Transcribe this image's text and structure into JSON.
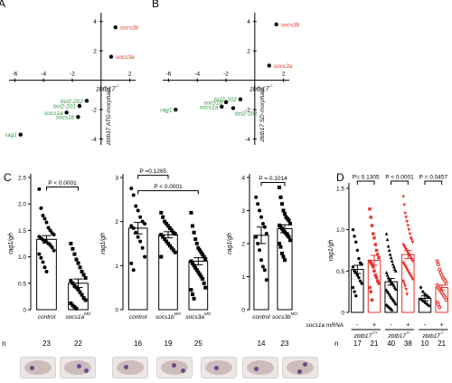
{
  "panels": {
    "A": {
      "letter": "A",
      "xlabel": "zbtb17",
      "xlabel_sup": "-/-",
      "ylabel": "zbtb17 ATG-morphant",
      "xticks": [
        -6,
        -4,
        -2,
        2
      ],
      "yticks": [
        4,
        2,
        -2,
        -4
      ],
      "points": [
        {
          "label": "socs3b",
          "x": 1.0,
          "y": 3.6,
          "color": "#e03a2f"
        },
        {
          "label": "socs3a",
          "x": 0.7,
          "y": 1.6,
          "color": "#e03a2f"
        },
        {
          "label": "bcl2-202",
          "x": -1.0,
          "y": -1.4,
          "color": "#2e9a3c"
        },
        {
          "label": "bcl2-201",
          "x": -1.5,
          "y": -1.75,
          "color": "#2e9a3c"
        },
        {
          "label": "socs1a",
          "x": -2.4,
          "y": -2.2,
          "color": "#2e9a3c"
        },
        {
          "label": "socs1b",
          "x": -1.6,
          "y": -2.5,
          "color": "#2e9a3c"
        },
        {
          "label": "rag1",
          "x": -5.6,
          "y": -3.7,
          "color": "#2e9a3c"
        }
      ]
    },
    "B": {
      "letter": "B",
      "xlabel": "zbtb17",
      "xlabel_sup": "-/-",
      "ylabel": "zbtb17 SD-morphant",
      "xticks": [
        -6,
        -4,
        -2,
        2
      ],
      "yticks": [
        4,
        2,
        -2,
        -4
      ],
      "points": [
        {
          "label": "socs3b",
          "x": 1.5,
          "y": 3.8,
          "color": "#e03a2f"
        },
        {
          "label": "socs3a",
          "x": 1.0,
          "y": 1.0,
          "color": "#e03a2f"
        },
        {
          "label": "bcl2-202",
          "x": -1.0,
          "y": -1.3,
          "color": "#2e9a3c"
        },
        {
          "label": "socs1b",
          "x": -2.0,
          "y": -1.5,
          "color": "#2e9a3c"
        },
        {
          "label": "socs1a",
          "x": -2.3,
          "y": -1.8,
          "color": "#2e9a3c"
        },
        {
          "label": "bcl2-201",
          "x": -1.5,
          "y": -1.9,
          "color": "#2e9a3c"
        },
        {
          "label": "rag1",
          "x": -5.5,
          "y": -2.0,
          "color": "#2e9a3c"
        }
      ]
    },
    "C": {
      "letter": "C",
      "ylabel": "rag1/gh",
      "n_label": "n",
      "sub": [
        {
          "ylim": [
            0,
            2.5
          ],
          "yticks": [
            "0",
            "0.5",
            "1.0",
            "1.5",
            "2.0",
            "2.5"
          ],
          "tick_values": [
            0,
            0.5,
            1.0,
            1.5,
            2.0,
            2.5
          ],
          "groups": [
            {
              "name": "control",
              "sup": "",
              "mean": 1.33,
              "sem": 0.07,
              "n": "23",
              "marker": "circle",
              "points": [
                2.28,
                1.92,
                1.78,
                1.72,
                1.65,
                1.55,
                1.5,
                1.45,
                1.42,
                1.38,
                1.35,
                1.32,
                1.3,
                1.28,
                1.25,
                1.22,
                1.18,
                1.12,
                1.05,
                0.98,
                0.9,
                0.8,
                0.72
              ]
            },
            {
              "name": "socs1a",
              "sup": "MO",
              "mean": 0.5,
              "sem": 0.08,
              "n": "22",
              "marker": "square",
              "points": [
                1.25,
                1.15,
                1.05,
                0.95,
                0.88,
                0.8,
                0.72,
                0.66,
                0.6,
                0.55,
                0.5,
                0.45,
                0.42,
                0.38,
                0.33,
                0.28,
                0.22,
                0.18,
                0.12,
                0.08,
                0.05,
                0.02
              ]
            }
          ],
          "brackets": [
            {
              "from": 0,
              "to": 1,
              "y": 2.32,
              "label": "P < 0.0001"
            }
          ]
        },
        {
          "ylim": [
            0,
            3
          ],
          "yticks": [
            "0",
            "1",
            "2",
            "3"
          ],
          "tick_values": [
            0,
            1,
            2,
            3
          ],
          "groups": [
            {
              "name": "control",
              "sup": "",
              "mean": 1.85,
              "sem": 0.13,
              "n": "16",
              "marker": "circle",
              "points": [
                2.75,
                2.6,
                2.35,
                2.25,
                2.1,
                2.0,
                1.95,
                1.9,
                1.85,
                1.75,
                1.65,
                1.55,
                1.4,
                1.2,
                1.05,
                0.9
              ]
            },
            {
              "name": "socs1b",
              "sup": "MO",
              "mean": 1.7,
              "sem": 0.07,
              "n": "19",
              "marker": "square",
              "points": [
                2.2,
                2.1,
                2.0,
                1.95,
                1.9,
                1.85,
                1.8,
                1.75,
                1.72,
                1.7,
                1.65,
                1.6,
                1.55,
                1.5,
                1.45,
                1.4,
                1.35,
                1.3,
                1.2
              ]
            },
            {
              "name": "socs3a",
              "sup": "MO",
              "mean": 1.1,
              "sem": 0.08,
              "n": "25",
              "marker": "square",
              "points": [
                2.2,
                1.9,
                1.75,
                1.6,
                1.5,
                1.4,
                1.35,
                1.3,
                1.25,
                1.2,
                1.15,
                1.1,
                1.05,
                1.0,
                0.95,
                0.9,
                0.85,
                0.8,
                0.75,
                0.7,
                0.6,
                0.5,
                0.45,
                0.35,
                0.25
              ]
            }
          ],
          "brackets": [
            {
              "from": 0,
              "to": 1,
              "y": 3.05,
              "label": "P =0.1265"
            },
            {
              "from": 0,
              "to": 2,
              "y": 2.7,
              "label": "P < 0.0001"
            }
          ]
        },
        {
          "ylim": [
            0,
            4
          ],
          "yticks": [
            "0",
            "1",
            "2",
            "3",
            "4"
          ],
          "tick_values": [
            0,
            1,
            2,
            3,
            4
          ],
          "groups": [
            {
              "name": "control",
              "sup": "",
              "mean": 2.25,
              "sem": 0.25,
              "n": "14",
              "marker": "circle",
              "points": [
                3.4,
                3.2,
                3.0,
                2.8,
                2.6,
                2.5,
                2.3,
                2.2,
                2.0,
                1.8,
                1.5,
                1.3,
                1.2,
                0.9
              ]
            },
            {
              "name": "socs3b",
              "sup": "MO",
              "mean": 2.45,
              "sem": 0.12,
              "n": "23",
              "marker": "square",
              "points": [
                3.7,
                3.4,
                3.2,
                3.0,
                2.9,
                2.8,
                2.75,
                2.7,
                2.6,
                2.55,
                2.5,
                2.45,
                2.4,
                2.35,
                2.3,
                2.25,
                2.2,
                2.1,
                2.0,
                1.9,
                1.7,
                1.6,
                1.5
              ]
            }
          ],
          "brackets": [
            {
              "from": 0,
              "to": 1,
              "y": 3.85,
              "label": "P = 0.1014"
            }
          ]
        }
      ]
    },
    "D": {
      "letter": "D",
      "ylabel": "rag1/gh",
      "yticks": [
        "0",
        "0.5",
        "1.0",
        "1.5"
      ],
      "tick_values": [
        0,
        0.5,
        1.0,
        1.5
      ],
      "ylim": [
        0,
        1.5
      ],
      "n_label": "n",
      "mrna_label": "socs1a mRNA",
      "genotypes": [
        {
          "name": "zbtb17",
          "sup": "+/+"
        },
        {
          "name": "zbtb17",
          "sup": "+/-"
        },
        {
          "name": "zbtb17",
          "sup": "-/-"
        }
      ],
      "groups": [
        {
          "mrna": "-",
          "mean": 0.52,
          "sem": 0.05,
          "n": "17",
          "color": "#000000",
          "marker": "circle",
          "points": [
            1.0,
            0.92,
            0.85,
            0.75,
            0.65,
            0.6,
            0.58,
            0.55,
            0.5,
            0.48,
            0.45,
            0.42,
            0.38,
            0.35,
            0.3,
            0.25,
            0.2
          ]
        },
        {
          "mrna": "+",
          "mean": 0.63,
          "sem": 0.06,
          "n": "21",
          "color": "#e8302a",
          "marker": "square",
          "points": [
            1.25,
            1.15,
            1.05,
            0.95,
            0.9,
            0.82,
            0.75,
            0.7,
            0.66,
            0.62,
            0.6,
            0.58,
            0.55,
            0.5,
            0.45,
            0.42,
            0.38,
            0.35,
            0.3,
            0.25,
            0.15
          ]
        },
        {
          "mrna": "-",
          "mean": 0.37,
          "sem": 0.04,
          "n": "40",
          "color": "#000000",
          "marker": "triangle",
          "points": [
            0.95,
            0.88,
            0.8,
            0.75,
            0.7,
            0.66,
            0.62,
            0.58,
            0.55,
            0.52,
            0.5,
            0.48,
            0.45,
            0.42,
            0.4,
            0.38,
            0.36,
            0.35,
            0.34,
            0.32,
            0.3,
            0.28,
            0.27,
            0.25,
            0.24,
            0.22,
            0.2,
            0.18,
            0.17,
            0.15,
            0.14,
            0.12,
            0.1,
            0.09,
            0.08,
            0.07,
            0.06,
            0.05,
            0.04,
            0.03
          ]
        },
        {
          "mrna": "+",
          "mean": 0.7,
          "sem": 0.05,
          "n": "38",
          "color": "#e8302a",
          "marker": "invtriangle",
          "points": [
            1.4,
            1.3,
            1.2,
            1.15,
            1.1,
            1.05,
            1.0,
            0.95,
            0.9,
            0.88,
            0.85,
            0.82,
            0.8,
            0.78,
            0.76,
            0.74,
            0.72,
            0.7,
            0.68,
            0.66,
            0.64,
            0.62,
            0.6,
            0.58,
            0.56,
            0.54,
            0.52,
            0.5,
            0.48,
            0.46,
            0.44,
            0.42,
            0.4,
            0.38,
            0.35,
            0.32,
            0.28,
            0.22
          ]
        },
        {
          "mrna": "-",
          "mean": 0.17,
          "sem": 0.03,
          "n": "10",
          "color": "#000000",
          "marker": "diamond",
          "points": [
            0.3,
            0.25,
            0.22,
            0.2,
            0.18,
            0.16,
            0.14,
            0.12,
            0.1,
            0.08
          ]
        },
        {
          "mrna": "+",
          "mean": 0.3,
          "sem": 0.03,
          "n": "21",
          "color": "#e8302a",
          "marker": "circle-open",
          "points": [
            0.62,
            0.58,
            0.52,
            0.48,
            0.45,
            0.42,
            0.4,
            0.38,
            0.35,
            0.33,
            0.3,
            0.28,
            0.26,
            0.24,
            0.22,
            0.2,
            0.18,
            0.15,
            0.12,
            0.1,
            0.06
          ]
        }
      ],
      "brackets": [
        {
          "from": 0,
          "to": 1,
          "label": "P= 0.1305"
        },
        {
          "from": 2,
          "to": 3,
          "label": "P < 0.0001"
        },
        {
          "from": 4,
          "to": 5,
          "label": "P = 0.0457"
        }
      ]
    }
  },
  "chart_data": [
    {
      "type": "scatter",
      "panel": "A",
      "xlabel": "zbtb17-/-",
      "ylabel": "zbtb17 ATG-morphant",
      "series": [
        {
          "labels": [
            "socs3b",
            "socs3a",
            "bcl2-202",
            "bcl2-201",
            "socs1a",
            "socs1b",
            "rag1"
          ],
          "x": [
            1.0,
            0.7,
            -1.0,
            -1.5,
            -2.4,
            -1.6,
            -5.6
          ],
          "y": [
            3.6,
            1.6,
            -1.4,
            -1.75,
            -2.2,
            -2.5,
            -3.7
          ]
        }
      ]
    },
    {
      "type": "scatter",
      "panel": "B",
      "xlabel": "zbtb17-/-",
      "ylabel": "zbtb17 SD-morphant",
      "series": [
        {
          "labels": [
            "socs3b",
            "socs3a",
            "bcl2-202",
            "socs1b",
            "socs1a",
            "bcl2-201",
            "rag1"
          ],
          "x": [
            1.5,
            1.0,
            -1.0,
            -2.0,
            -2.3,
            -1.5,
            -5.5
          ],
          "y": [
            3.8,
            1.0,
            -1.3,
            -1.5,
            -1.8,
            -1.9,
            -2.0
          ]
        }
      ]
    },
    {
      "type": "bar",
      "panel": "C",
      "ylabel": "rag1/gh",
      "categories": [
        "control",
        "socs1a MO",
        "control",
        "socs1b MO",
        "socs3a MO",
        "control",
        "socs3b MO"
      ],
      "values": [
        1.33,
        0.5,
        1.85,
        1.7,
        1.1,
        2.25,
        2.45
      ],
      "n": [
        23,
        22,
        16,
        19,
        25,
        14,
        23
      ]
    },
    {
      "type": "bar",
      "panel": "D",
      "ylabel": "rag1/gh",
      "categories": [
        "zbtb17+/+ -",
        "zbtb17+/+ +",
        "zbtb17+/- -",
        "zbtb17+/- +",
        "zbtb17-/- -",
        "zbtb17-/- +"
      ],
      "values": [
        0.52,
        0.63,
        0.37,
        0.7,
        0.17,
        0.3
      ],
      "n": [
        17,
        21,
        40,
        38,
        10,
        21
      ],
      "ylim": [
        0,
        1.5
      ]
    }
  ]
}
